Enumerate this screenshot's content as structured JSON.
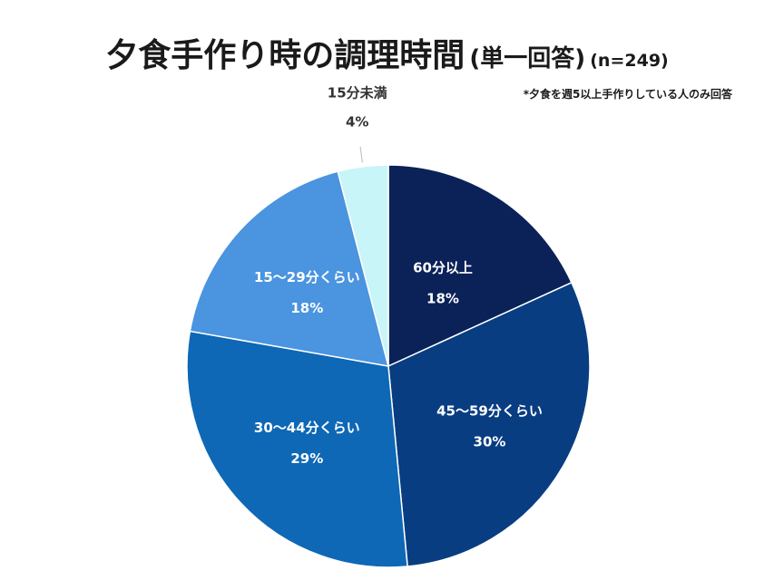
{
  "chart_data": {
    "type": "pie",
    "title": "夕食手作り時の調理時間",
    "title_suffix": "(単一回答)",
    "sample_size": "(n=249)",
    "note": "*夕食を週5以上手作りしている人のみ回答",
    "slices": [
      {
        "label": "60分以上",
        "value": 18,
        "value_label": "18%",
        "color": "#0a2258"
      },
      {
        "label": "45〜59分くらい",
        "value": 30,
        "value_label": "30%",
        "color": "#083d82"
      },
      {
        "label": "30〜44分くらい",
        "value": 29,
        "value_label": "29%",
        "color": "#0e68b5"
      },
      {
        "label": "15〜29分くらい",
        "value": 18,
        "value_label": "18%",
        "color": "#4a94e0"
      },
      {
        "label": "15分未満",
        "value": 4,
        "value_label": "4%",
        "color": "#c8f5f7"
      }
    ]
  }
}
